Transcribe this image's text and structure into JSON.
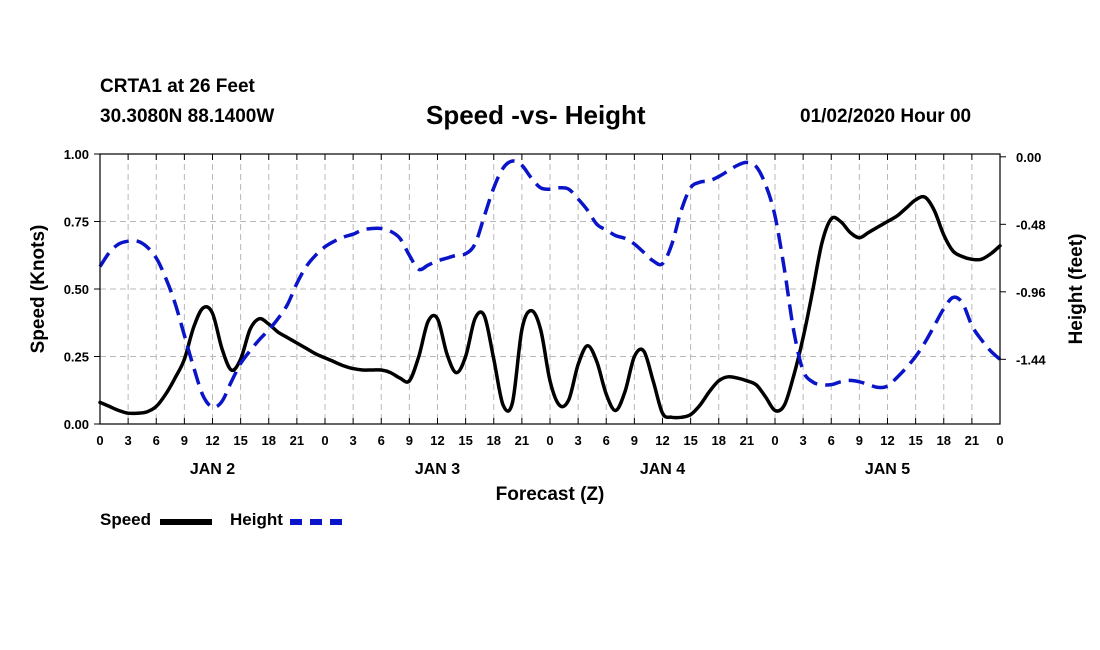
{
  "header": {
    "station": "CRTA1 at 26 Feet",
    "coords": "30.3080N 88.1400W",
    "title": "Speed -vs- Height",
    "date": "01/02/2020 Hour 00"
  },
  "legend": {
    "speed_label": "Speed",
    "height_label": "Height"
  },
  "colors": {
    "speed": "#000000",
    "height": "#0a14c8",
    "grid": "#b8b8b8"
  },
  "chart_data": {
    "type": "line",
    "title": "Speed -vs- Height",
    "xlabel": "Forecast (Z)",
    "ylabel": "Speed (Knots)",
    "ylabel_right": "Height (feet)",
    "xlim": [
      0,
      96
    ],
    "ylim": [
      0,
      1.0
    ],
    "ylim_right": [
      -1.9,
      0.02
    ],
    "x_ticks": [
      0,
      3,
      6,
      9,
      12,
      15,
      18,
      21,
      24,
      27,
      30,
      33,
      36,
      39,
      42,
      45,
      48,
      51,
      54,
      57,
      60,
      63,
      66,
      69,
      72,
      75,
      78,
      81,
      84,
      87,
      90,
      93,
      96
    ],
    "x_tick_labels": [
      "0",
      "3",
      "6",
      "9",
      "12",
      "15",
      "18",
      "21",
      "0",
      "3",
      "6",
      "9",
      "12",
      "15",
      "18",
      "21",
      "0",
      "3",
      "6",
      "9",
      "12",
      "15",
      "18",
      "21",
      "0",
      "3",
      "6",
      "9",
      "12",
      "15",
      "18",
      "21",
      "0"
    ],
    "day_labels": [
      {
        "x": 12,
        "label": "JAN 2"
      },
      {
        "x": 36,
        "label": "JAN 3"
      },
      {
        "x": 60,
        "label": "JAN 4"
      },
      {
        "x": 84,
        "label": "JAN 5"
      }
    ],
    "y_ticks": [
      0,
      0.25,
      0.5,
      0.75,
      1.0
    ],
    "y_tick_labels": [
      "0.00",
      "0.25",
      "0.50",
      "0.75",
      "1.00"
    ],
    "y_ticks_right": [
      0.0,
      -0.48,
      -0.96,
      -1.44
    ],
    "y_tick_labels_right": [
      "0.00",
      "-0.48",
      "-0.96",
      "-1.44"
    ],
    "grid": true,
    "series": [
      {
        "name": "Speed",
        "axis": "left",
        "style": "solid",
        "x": [
          0,
          1,
          2,
          3,
          4,
          5,
          6,
          7,
          8,
          9,
          10,
          11,
          12,
          13,
          14,
          15,
          16,
          17,
          18,
          19,
          20,
          21,
          22,
          23,
          24,
          25,
          26,
          27,
          28,
          29,
          30,
          31,
          32,
          33,
          34,
          35,
          36,
          37,
          38,
          39,
          40,
          41,
          42,
          43,
          44,
          45,
          46,
          47,
          48,
          49,
          50,
          51,
          52,
          53,
          54,
          55,
          56,
          57,
          58,
          59,
          60,
          61,
          62,
          63,
          64,
          65,
          66,
          67,
          68,
          69,
          70,
          71,
          72,
          73,
          74,
          75,
          76,
          77,
          78,
          79,
          80,
          81,
          82,
          83,
          84,
          85,
          86,
          87,
          88,
          89,
          90,
          91,
          92,
          93,
          94,
          95,
          96
        ],
        "values": [
          0.08,
          0.065,
          0.05,
          0.04,
          0.04,
          0.045,
          0.065,
          0.11,
          0.17,
          0.24,
          0.36,
          0.43,
          0.41,
          0.28,
          0.2,
          0.24,
          0.35,
          0.39,
          0.37,
          0.34,
          0.32,
          0.3,
          0.28,
          0.26,
          0.245,
          0.23,
          0.215,
          0.205,
          0.2,
          0.2,
          0.2,
          0.19,
          0.17,
          0.16,
          0.25,
          0.38,
          0.39,
          0.26,
          0.19,
          0.25,
          0.39,
          0.4,
          0.24,
          0.07,
          0.08,
          0.35,
          0.42,
          0.35,
          0.16,
          0.07,
          0.09,
          0.22,
          0.29,
          0.23,
          0.11,
          0.05,
          0.12,
          0.25,
          0.27,
          0.16,
          0.04,
          0.025,
          0.025,
          0.035,
          0.07,
          0.12,
          0.16,
          0.175,
          0.17,
          0.16,
          0.145,
          0.1,
          0.05,
          0.07,
          0.18,
          0.32,
          0.49,
          0.67,
          0.76,
          0.75,
          0.71,
          0.69,
          0.71,
          0.73,
          0.75,
          0.77,
          0.8,
          0.83,
          0.84,
          0.79,
          0.7,
          0.64,
          0.62,
          0.61,
          0.61,
          0.63,
          0.66
        ]
      },
      {
        "name": "Height",
        "axis": "right",
        "style": "dashed",
        "x": [
          0,
          1,
          2,
          3,
          4,
          5,
          6,
          7,
          8,
          9,
          10,
          11,
          12,
          13,
          14,
          15,
          16,
          17,
          18,
          19,
          20,
          21,
          22,
          23,
          24,
          25,
          26,
          27,
          28,
          29,
          30,
          31,
          32,
          33,
          34,
          35,
          36,
          37,
          38,
          39,
          40,
          41,
          42,
          43,
          44,
          45,
          46,
          47,
          48,
          49,
          50,
          51,
          52,
          53,
          54,
          55,
          56,
          57,
          58,
          59,
          60,
          61,
          62,
          63,
          64,
          65,
          66,
          67,
          68,
          69,
          70,
          71,
          72,
          73,
          74,
          75,
          76,
          77,
          78,
          79,
          80,
          81,
          82,
          83,
          84,
          85,
          86,
          87,
          88,
          89,
          90,
          91,
          92,
          93,
          94,
          95,
          96
        ],
        "values": [
          -0.78,
          -0.68,
          -0.62,
          -0.6,
          -0.6,
          -0.64,
          -0.72,
          -0.86,
          -1.04,
          -1.27,
          -1.5,
          -1.7,
          -1.78,
          -1.74,
          -1.6,
          -1.47,
          -1.38,
          -1.3,
          -1.23,
          -1.15,
          -1.05,
          -0.9,
          -0.78,
          -0.7,
          -0.64,
          -0.6,
          -0.57,
          -0.55,
          -0.52,
          -0.51,
          -0.51,
          -0.53,
          -0.58,
          -0.7,
          -0.8,
          -0.77,
          -0.74,
          -0.72,
          -0.7,
          -0.69,
          -0.62,
          -0.42,
          -0.22,
          -0.08,
          -0.03,
          -0.06,
          -0.15,
          -0.22,
          -0.23,
          -0.22,
          -0.23,
          -0.3,
          -0.38,
          -0.48,
          -0.52,
          -0.56,
          -0.58,
          -0.62,
          -0.68,
          -0.74,
          -0.76,
          -0.62,
          -0.38,
          -0.22,
          -0.18,
          -0.17,
          -0.14,
          -0.1,
          -0.06,
          -0.04,
          -0.07,
          -0.2,
          -0.42,
          -0.8,
          -1.24,
          -1.52,
          -1.6,
          -1.62,
          -1.62,
          -1.6,
          -1.59,
          -1.6,
          -1.62,
          -1.64,
          -1.63,
          -1.57,
          -1.5,
          -1.42,
          -1.32,
          -1.2,
          -1.08,
          -1.0,
          -1.04,
          -1.2,
          -1.3,
          -1.38,
          -1.44
        ]
      }
    ]
  }
}
